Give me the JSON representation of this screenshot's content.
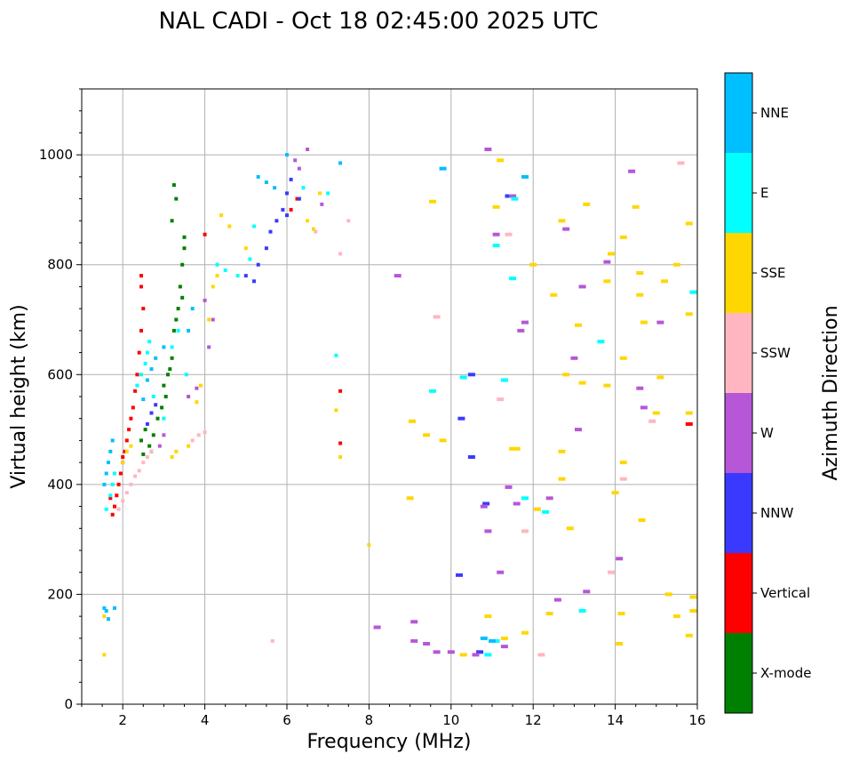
{
  "chart_data": {
    "type": "scatter",
    "title": "NAL CADI - Oct 18 02:45:00 2025 UTC",
    "xlabel": "Frequency (MHz)",
    "ylabel": "Virtual height (km)",
    "xlim": [
      1,
      16
    ],
    "ylim": [
      0,
      1120
    ],
    "xticks": [
      2,
      4,
      6,
      8,
      10,
      12,
      14,
      16
    ],
    "yticks": [
      0,
      200,
      400,
      600,
      800,
      1000
    ],
    "grid": true,
    "colorbar": {
      "title": "Azimuth Direction",
      "categories": [
        {
          "name": "X-mode",
          "color": "#008000"
        },
        {
          "name": "Vertical",
          "color": "#ff0000"
        },
        {
          "name": "NNW",
          "color": "#3a3aff"
        },
        {
          "name": "W",
          "color": "#b557d6"
        },
        {
          "name": "SSW",
          "color": "#ffb6c1"
        },
        {
          "name": "SSE",
          "color": "#ffd700"
        },
        {
          "name": "E",
          "color": "#00ffff"
        },
        {
          "name": "NNE",
          "color": "#00bfff"
        }
      ]
    },
    "series": [
      {
        "name": "X-mode",
        "points": [
          [
            2.45,
            480
          ],
          [
            2.55,
            500
          ],
          [
            2.65,
            470
          ],
          [
            2.75,
            490
          ],
          [
            2.85,
            520
          ],
          [
            2.95,
            540
          ],
          [
            3.05,
            560
          ],
          [
            3.1,
            600
          ],
          [
            3.2,
            630
          ],
          [
            3.25,
            680
          ],
          [
            3.35,
            720
          ],
          [
            3.4,
            760
          ],
          [
            3.45,
            800
          ],
          [
            3.5,
            850
          ],
          [
            3.2,
            880
          ],
          [
            3.3,
            920
          ],
          [
            3.25,
            945
          ],
          [
            2.5,
            455
          ],
          [
            2.7,
            460
          ],
          [
            3.0,
            580
          ],
          [
            3.15,
            610
          ],
          [
            3.3,
            700
          ],
          [
            3.45,
            740
          ],
          [
            3.5,
            830
          ]
        ]
      },
      {
        "name": "Vertical",
        "points": [
          [
            1.75,
            345
          ],
          [
            1.8,
            360
          ],
          [
            1.85,
            380
          ],
          [
            1.9,
            400
          ],
          [
            1.95,
            420
          ],
          [
            2.0,
            440
          ],
          [
            2.05,
            460
          ],
          [
            2.1,
            480
          ],
          [
            2.15,
            500
          ],
          [
            2.2,
            520
          ],
          [
            2.25,
            540
          ],
          [
            2.3,
            570
          ],
          [
            2.35,
            600
          ],
          [
            2.4,
            640
          ],
          [
            2.45,
            680
          ],
          [
            2.5,
            720
          ],
          [
            2.45,
            760
          ],
          [
            2.45,
            780
          ],
          [
            4.0,
            855
          ],
          [
            6.1,
            900
          ],
          [
            6.25,
            920
          ],
          [
            7.3,
            570
          ],
          [
            7.3,
            475
          ],
          [
            15.8,
            510
          ],
          [
            1.7,
            375
          ],
          [
            2.0,
            450
          ]
        ]
      },
      {
        "name": "NNW",
        "points": [
          [
            2.6,
            510
          ],
          [
            2.7,
            530
          ],
          [
            2.8,
            545
          ],
          [
            5.2,
            770
          ],
          [
            5.3,
            800
          ],
          [
            5.5,
            830
          ],
          [
            5.6,
            860
          ],
          [
            5.75,
            880
          ],
          [
            6.0,
            930
          ],
          [
            6.1,
            955
          ],
          [
            6.3,
            920
          ],
          [
            10.2,
            235
          ],
          [
            10.25,
            520
          ],
          [
            10.5,
            450
          ],
          [
            10.5,
            600
          ],
          [
            10.7,
            95
          ],
          [
            10.85,
            365
          ],
          [
            11.4,
            925
          ],
          [
            5.0,
            780
          ],
          [
            5.9,
            900
          ],
          [
            6.0,
            890
          ]
        ]
      },
      {
        "name": "W",
        "points": [
          [
            2.9,
            470
          ],
          [
            3.0,
            490
          ],
          [
            3.6,
            560
          ],
          [
            3.8,
            575
          ],
          [
            4.1,
            650
          ],
          [
            4.2,
            700
          ],
          [
            4.0,
            735
          ],
          [
            6.3,
            975
          ],
          [
            6.2,
            990
          ],
          [
            6.5,
            1010
          ],
          [
            6.85,
            910
          ],
          [
            8.2,
            140
          ],
          [
            8.7,
            780
          ],
          [
            9.1,
            150
          ],
          [
            9.1,
            115
          ],
          [
            9.4,
            110
          ],
          [
            9.65,
            95
          ],
          [
            10.0,
            95
          ],
          [
            10.6,
            90
          ],
          [
            10.8,
            360
          ],
          [
            10.9,
            315
          ],
          [
            10.9,
            1010
          ],
          [
            11.1,
            855
          ],
          [
            11.2,
            240
          ],
          [
            11.3,
            105
          ],
          [
            11.4,
            395
          ],
          [
            11.5,
            925
          ],
          [
            11.6,
            365
          ],
          [
            11.7,
            680
          ],
          [
            11.8,
            695
          ],
          [
            12.4,
            375
          ],
          [
            12.6,
            190
          ],
          [
            12.8,
            865
          ],
          [
            13.0,
            630
          ],
          [
            13.1,
            500
          ],
          [
            13.2,
            760
          ],
          [
            13.3,
            205
          ],
          [
            13.8,
            805
          ],
          [
            14.1,
            265
          ],
          [
            14.4,
            970
          ],
          [
            14.6,
            575
          ],
          [
            14.7,
            540
          ],
          [
            15.1,
            695
          ]
        ]
      },
      {
        "name": "SSW",
        "points": [
          [
            1.9,
            355
          ],
          [
            2.0,
            370
          ],
          [
            2.1,
            385
          ],
          [
            2.2,
            400
          ],
          [
            2.3,
            415
          ],
          [
            2.4,
            425
          ],
          [
            2.5,
            440
          ],
          [
            2.6,
            450
          ],
          [
            2.7,
            460
          ],
          [
            3.7,
            480
          ],
          [
            3.85,
            490
          ],
          [
            4.0,
            495
          ],
          [
            5.65,
            115
          ],
          [
            6.7,
            860
          ],
          [
            7.3,
            820
          ],
          [
            7.5,
            880
          ],
          [
            9.65,
            705
          ],
          [
            11.2,
            555
          ],
          [
            11.4,
            855
          ],
          [
            11.8,
            315
          ],
          [
            12.2,
            90
          ],
          [
            13.9,
            240
          ],
          [
            14.2,
            410
          ],
          [
            14.9,
            515
          ],
          [
            15.6,
            985
          ]
        ]
      },
      {
        "name": "SSE",
        "points": [
          [
            1.55,
            90
          ],
          [
            1.55,
            160
          ],
          [
            2.0,
            440
          ],
          [
            2.1,
            460
          ],
          [
            2.2,
            470
          ],
          [
            3.2,
            450
          ],
          [
            3.3,
            460
          ],
          [
            3.6,
            470
          ],
          [
            3.8,
            550
          ],
          [
            3.9,
            580
          ],
          [
            4.1,
            700
          ],
          [
            4.2,
            760
          ],
          [
            4.3,
            780
          ],
          [
            4.4,
            890
          ],
          [
            4.6,
            870
          ],
          [
            5.0,
            830
          ],
          [
            6.5,
            880
          ],
          [
            6.65,
            865
          ],
          [
            6.8,
            930
          ],
          [
            7.2,
            535
          ],
          [
            7.3,
            450
          ],
          [
            8.0,
            290
          ],
          [
            9.0,
            375
          ],
          [
            9.05,
            515
          ],
          [
            9.4,
            490
          ],
          [
            9.55,
            915
          ],
          [
            9.8,
            480
          ],
          [
            10.3,
            90
          ],
          [
            10.9,
            160
          ],
          [
            11.1,
            905
          ],
          [
            11.2,
            990
          ],
          [
            11.3,
            120
          ],
          [
            11.5,
            465
          ],
          [
            11.6,
            465
          ],
          [
            11.8,
            130
          ],
          [
            12.0,
            800
          ],
          [
            12.1,
            355
          ],
          [
            12.4,
            165
          ],
          [
            12.5,
            745
          ],
          [
            12.7,
            410
          ],
          [
            12.7,
            460
          ],
          [
            12.7,
            880
          ],
          [
            12.8,
            600
          ],
          [
            12.9,
            320
          ],
          [
            13.1,
            690
          ],
          [
            13.2,
            585
          ],
          [
            13.3,
            910
          ],
          [
            13.8,
            580
          ],
          [
            13.8,
            770
          ],
          [
            13.9,
            820
          ],
          [
            14.0,
            385
          ],
          [
            14.1,
            110
          ],
          [
            14.15,
            165
          ],
          [
            14.2,
            440
          ],
          [
            14.2,
            630
          ],
          [
            14.2,
            850
          ],
          [
            14.5,
            905
          ],
          [
            14.6,
            785
          ],
          [
            14.6,
            745
          ],
          [
            14.65,
            335
          ],
          [
            14.7,
            695
          ],
          [
            15.0,
            530
          ],
          [
            15.1,
            595
          ],
          [
            15.2,
            770
          ],
          [
            15.3,
            200
          ],
          [
            15.5,
            800
          ],
          [
            15.5,
            160
          ],
          [
            15.8,
            530
          ],
          [
            15.8,
            710
          ],
          [
            15.8,
            875
          ],
          [
            15.8,
            125
          ],
          [
            15.9,
            170
          ],
          [
            15.9,
            195
          ]
        ]
      },
      {
        "name": "E",
        "points": [
          [
            1.6,
            355
          ],
          [
            1.7,
            380
          ],
          [
            1.75,
            400
          ],
          [
            1.8,
            420
          ],
          [
            2.35,
            580
          ],
          [
            2.45,
            600
          ],
          [
            2.55,
            620
          ],
          [
            2.6,
            640
          ],
          [
            2.65,
            660
          ],
          [
            2.75,
            560
          ],
          [
            3.0,
            520
          ],
          [
            3.2,
            650
          ],
          [
            3.35,
            680
          ],
          [
            3.55,
            600
          ],
          [
            4.3,
            800
          ],
          [
            4.5,
            790
          ],
          [
            4.8,
            780
          ],
          [
            5.1,
            810
          ],
          [
            5.2,
            870
          ],
          [
            6.4,
            940
          ],
          [
            7.0,
            930
          ],
          [
            7.2,
            635
          ],
          [
            9.55,
            570
          ],
          [
            10.3,
            595
          ],
          [
            10.9,
            90
          ],
          [
            11.1,
            835
          ],
          [
            11.1,
            115
          ],
          [
            11.3,
            590
          ],
          [
            11.5,
            775
          ],
          [
            11.55,
            920
          ],
          [
            11.8,
            375
          ],
          [
            12.3,
            350
          ],
          [
            13.2,
            170
          ],
          [
            13.65,
            660
          ],
          [
            15.9,
            750
          ]
        ]
      },
      {
        "name": "NNE",
        "points": [
          [
            1.55,
            400
          ],
          [
            1.6,
            420
          ],
          [
            1.65,
            440
          ],
          [
            1.7,
            460
          ],
          [
            1.75,
            480
          ],
          [
            2.5,
            555
          ],
          [
            2.6,
            590
          ],
          [
            2.7,
            610
          ],
          [
            2.8,
            630
          ],
          [
            3.0,
            650
          ],
          [
            3.6,
            680
          ],
          [
            3.7,
            720
          ],
          [
            1.55,
            175
          ],
          [
            1.6,
            170
          ],
          [
            1.65,
            155
          ],
          [
            1.8,
            175
          ],
          [
            5.3,
            960
          ],
          [
            5.5,
            950
          ],
          [
            5.7,
            940
          ],
          [
            6.0,
            1000
          ],
          [
            7.3,
            985
          ],
          [
            9.8,
            975
          ],
          [
            11.8,
            960
          ],
          [
            10.8,
            120
          ],
          [
            11.0,
            115
          ]
        ]
      }
    ]
  }
}
